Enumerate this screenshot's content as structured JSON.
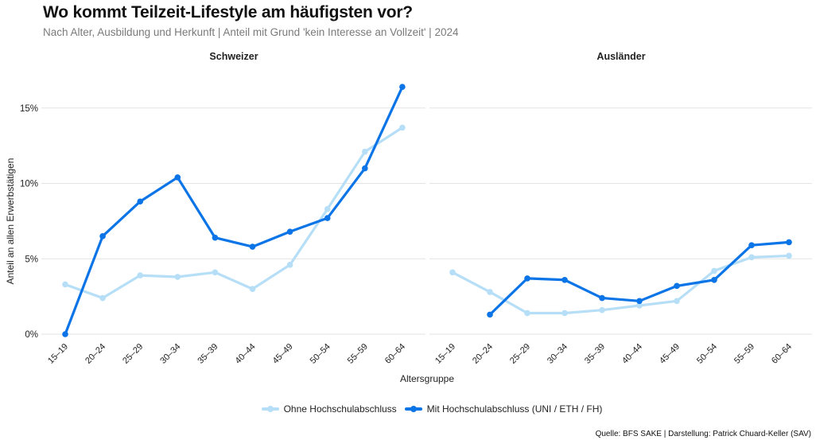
{
  "header": {
    "title": "Wo kommt Teilzeit-Lifestyle am häufigsten vor?",
    "subtitle": "Nach Alter, Ausbildung und Herkunft | Anteil mit Grund 'kein Interesse an Vollzeit' | 2024"
  },
  "colors": {
    "ohne": "#B6DFF7",
    "mit": "#0B74E6",
    "grid": "#E3E3E3"
  },
  "legend": {
    "items": [
      {
        "label": "Ohne Hochschulabschluss",
        "series": "ohne"
      },
      {
        "label": "Mit Hochschulabschluss (UNI / ETH / FH)",
        "series": "mit"
      }
    ]
  },
  "source": "Quelle: BFS SAKE | Darstellung: Patrick Chuard-Keller (SAV)",
  "chart_data": [
    {
      "type": "line",
      "facet": "Schweizer",
      "title": "Schweizer",
      "xlabel": "Altersgruppe",
      "ylabel": "Anteil an allen Erwerbstätigen",
      "categories": [
        "15–19",
        "20–24",
        "25–29",
        "30–34",
        "35–39",
        "40–44",
        "45–49",
        "50–54",
        "55–59",
        "60–64"
      ],
      "yticks": [
        0,
        5,
        10,
        15
      ],
      "ytick_labels": [
        "0%",
        "5%",
        "10%",
        "15%"
      ],
      "ylim": [
        0,
        17
      ],
      "grid": true,
      "legend": "bottom",
      "series": [
        {
          "name": "Ohne Hochschulabschluss",
          "key": "ohne",
          "values": [
            3.3,
            2.4,
            3.9,
            3.8,
            4.1,
            3.0,
            4.6,
            8.3,
            12.1,
            13.7
          ]
        },
        {
          "name": "Mit Hochschulabschluss (UNI / ETH / FH)",
          "key": "mit",
          "values": [
            0.0,
            6.5,
            8.8,
            10.4,
            6.4,
            5.8,
            6.8,
            7.7,
            11.0,
            16.4
          ]
        }
      ]
    },
    {
      "type": "line",
      "facet": "Ausländer",
      "title": "Ausländer",
      "xlabel": "Altersgruppe",
      "ylabel": "Anteil an allen Erwerbstätigen",
      "categories": [
        "15–19",
        "20–24",
        "25–29",
        "30–34",
        "35–39",
        "40–44",
        "45–49",
        "50–54",
        "55–59",
        "60–64"
      ],
      "yticks": [
        0,
        5,
        10,
        15
      ],
      "ytick_labels": [
        "0%",
        "5%",
        "10%",
        "15%"
      ],
      "ylim": [
        0,
        17
      ],
      "grid": true,
      "legend": "bottom",
      "series": [
        {
          "name": "Ohne Hochschulabschluss",
          "key": "ohne",
          "values": [
            4.1,
            2.8,
            1.4,
            1.4,
            1.6,
            1.9,
            2.2,
            4.2,
            5.1,
            5.2
          ]
        },
        {
          "name": "Mit Hochschulabschluss (UNI / ETH / FH)",
          "key": "mit",
          "values": [
            null,
            1.3,
            3.7,
            3.6,
            2.4,
            2.2,
            3.2,
            3.6,
            5.9,
            6.1
          ]
        }
      ]
    }
  ]
}
